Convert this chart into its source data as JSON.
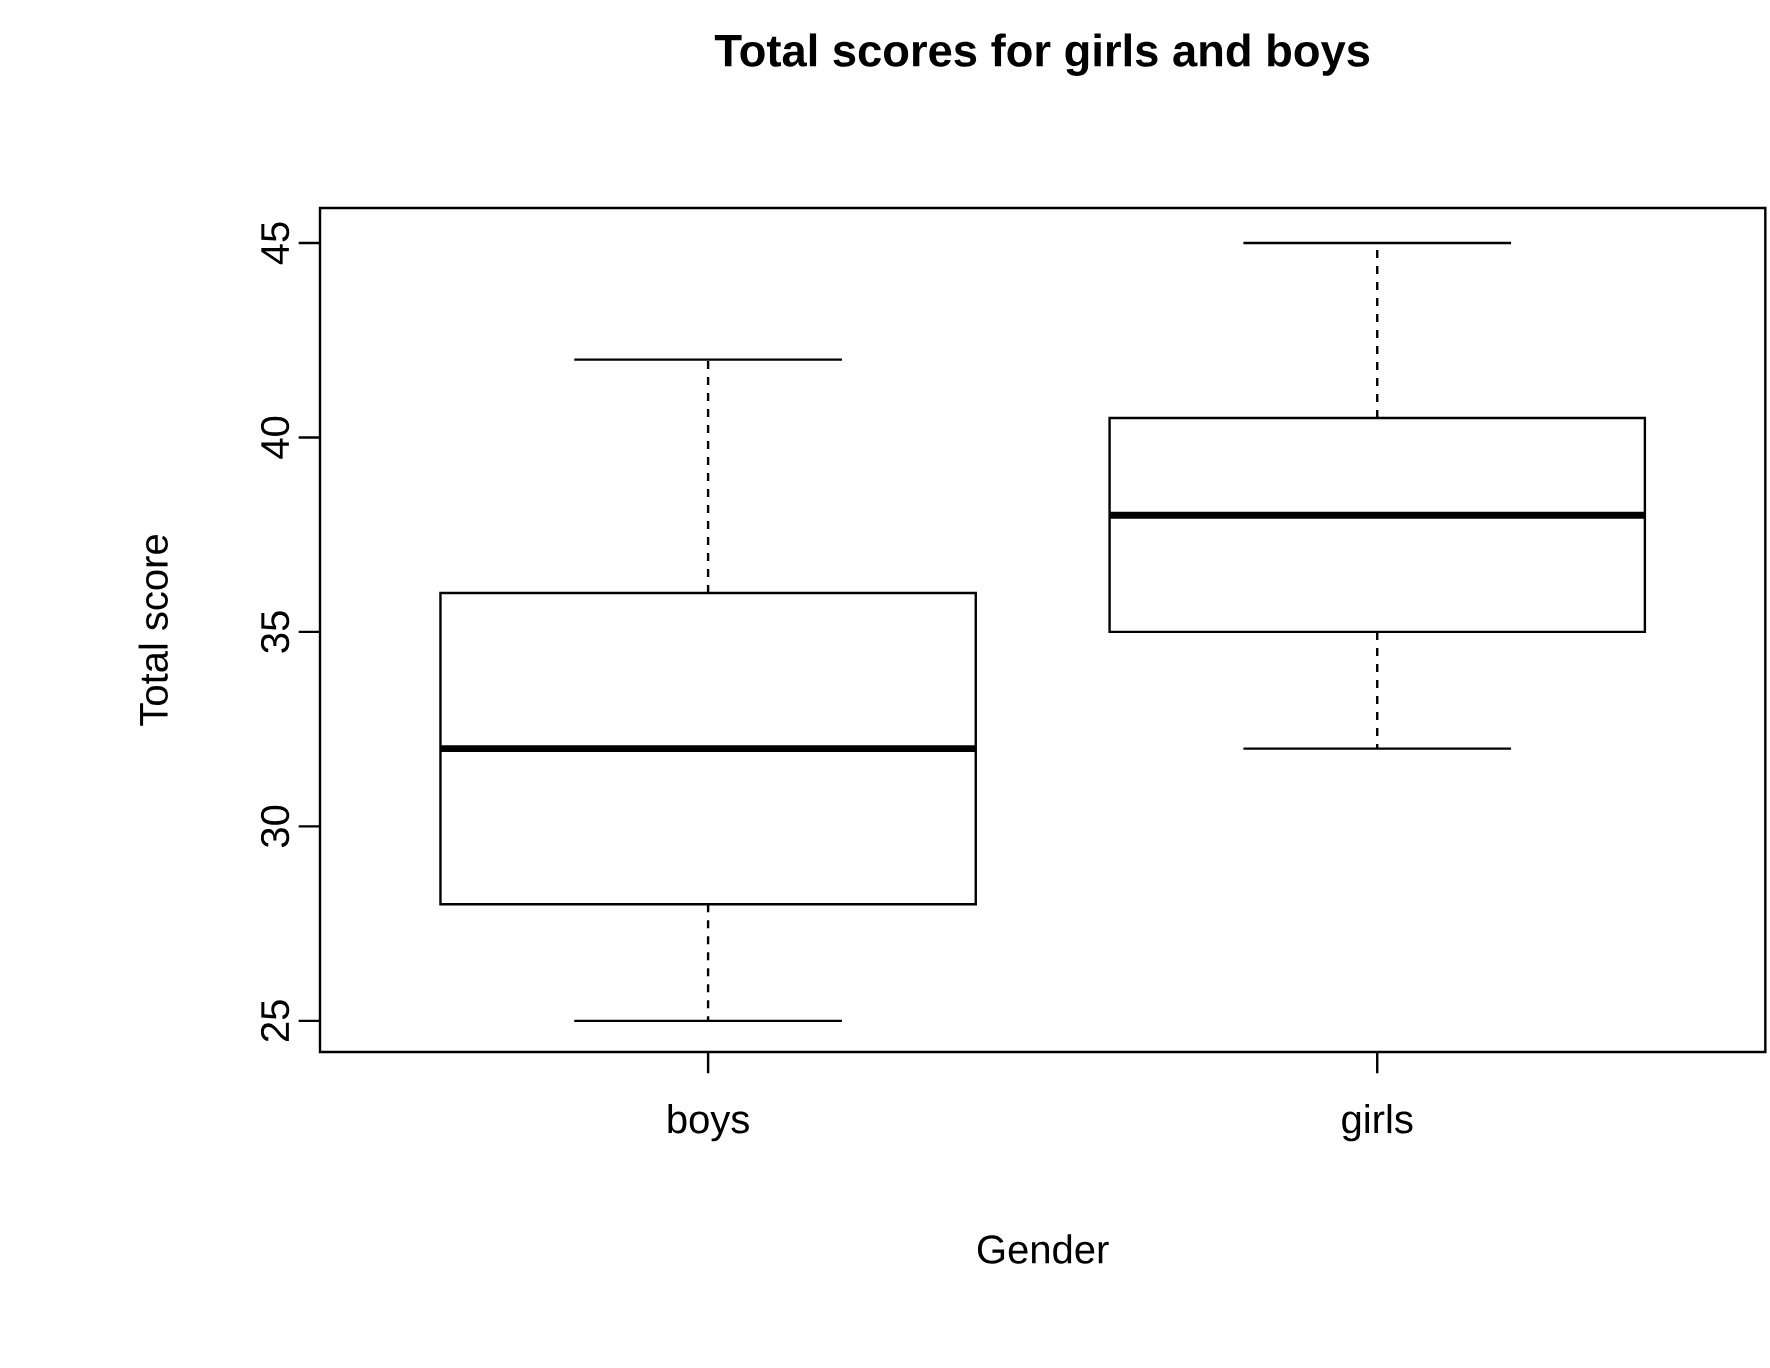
{
  "chart_data": {
    "type": "box",
    "title": "Total scores for girls and boys",
    "xlabel": "Gender",
    "ylabel": "Total score",
    "categories": [
      "boys",
      "girls"
    ],
    "boxes": [
      {
        "low": 25,
        "q1": 28,
        "median": 32,
        "q3": 36,
        "high": 42
      },
      {
        "low": 32,
        "q1": 35,
        "median": 38,
        "q3": 40.5,
        "high": 45
      }
    ],
    "ylim": [
      24.2,
      45.9
    ],
    "yticks": [
      25,
      30,
      35,
      40,
      45
    ],
    "grid": false
  }
}
